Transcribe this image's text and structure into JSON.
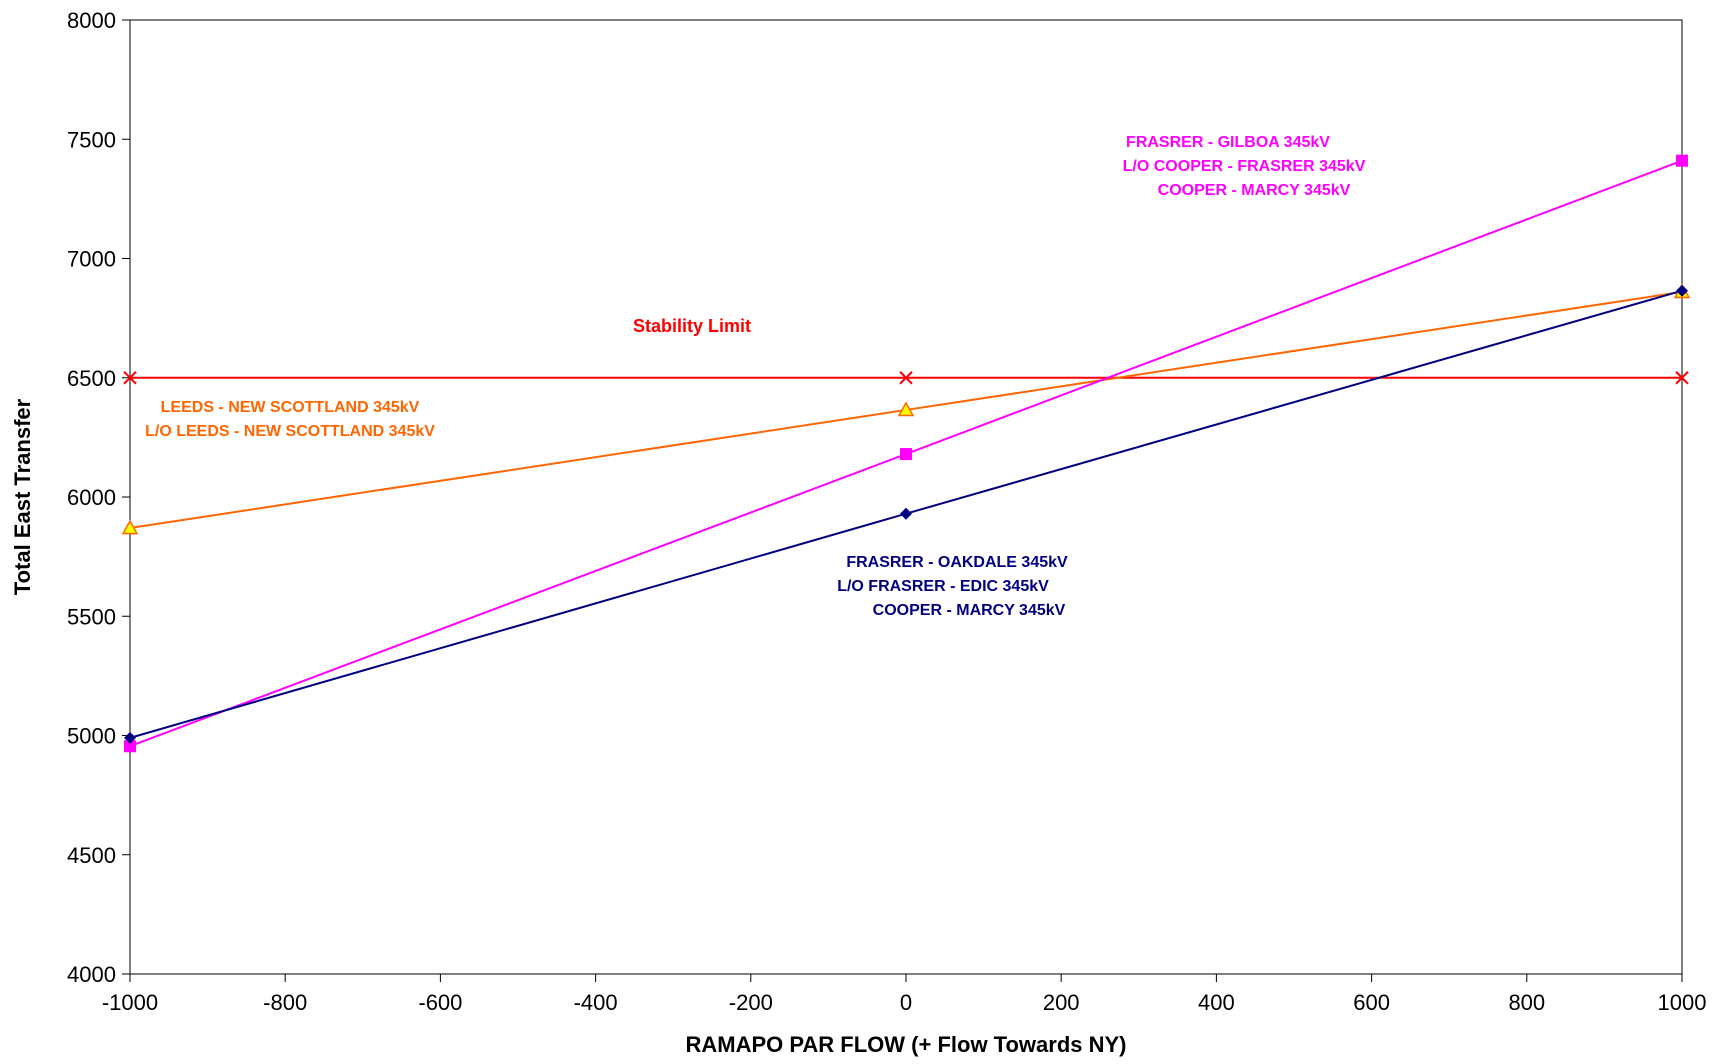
{
  "chart_data": {
    "type": "line",
    "title": "",
    "xlabel": "RAMAPO PAR FLOW (+ Flow Towards  NY)",
    "ylabel": "Total East Transfer",
    "xlim": [
      -1000,
      1000
    ],
    "ylim": [
      4000,
      8000
    ],
    "x_ticks": [
      "-1000",
      "-800",
      "-600",
      "-400",
      "-200",
      "0",
      "200",
      "400",
      "600",
      "800",
      "1000"
    ],
    "y_ticks": [
      "4000",
      "4500",
      "5000",
      "5500",
      "6000",
      "6500",
      "7000",
      "7500",
      "8000"
    ],
    "grid": false,
    "legend": "none",
    "series": [
      {
        "key": "stability",
        "color": "#ff0000",
        "marker": "x",
        "x": [
          -1000,
          0,
          1000
        ],
        "y": [
          6500,
          6500,
          6500
        ]
      },
      {
        "key": "leeds",
        "color": "#ff6600",
        "marker": "triangle",
        "marker_fill": "#ffff00",
        "x": [
          -1000,
          0,
          1000
        ],
        "y": [
          5870,
          6365,
          6860
        ]
      },
      {
        "key": "frasrer_gilboa",
        "color": "#ff00ff",
        "marker": "square",
        "x": [
          -1000,
          0,
          1000
        ],
        "y": [
          4955,
          6180,
          7410
        ]
      },
      {
        "key": "frasrer_oakdale",
        "color": "#000080",
        "marker": "diamond",
        "x": [
          -1000,
          0,
          1000
        ],
        "y": [
          4990,
          5930,
          6865
        ]
      }
    ],
    "annotations": [
      {
        "key": "stability",
        "color": "#ff0000",
        "lines": [
          "Stability Limit"
        ]
      },
      {
        "key": "leeds",
        "color": "#ff6600",
        "lines": [
          "LEEDS - NEW SCOTTLAND 345kV",
          "L/O LEEDS - NEW SCOTTLAND 345kV"
        ]
      },
      {
        "key": "frasrer_gilboa",
        "color": "#ff00ff",
        "lines": [
          "FRASRER - GILBOA 345kV",
          "L/O COOPER - FRASRER 345kV",
          "COOPER - MARCY 345kV"
        ]
      },
      {
        "key": "frasrer_oakdale",
        "color": "#000080",
        "lines": [
          "FRASRER - OAKDALE 345kV",
          "L/O FRASRER - EDIC 345kV",
          "COOPER - MARCY 345kV"
        ]
      }
    ]
  }
}
